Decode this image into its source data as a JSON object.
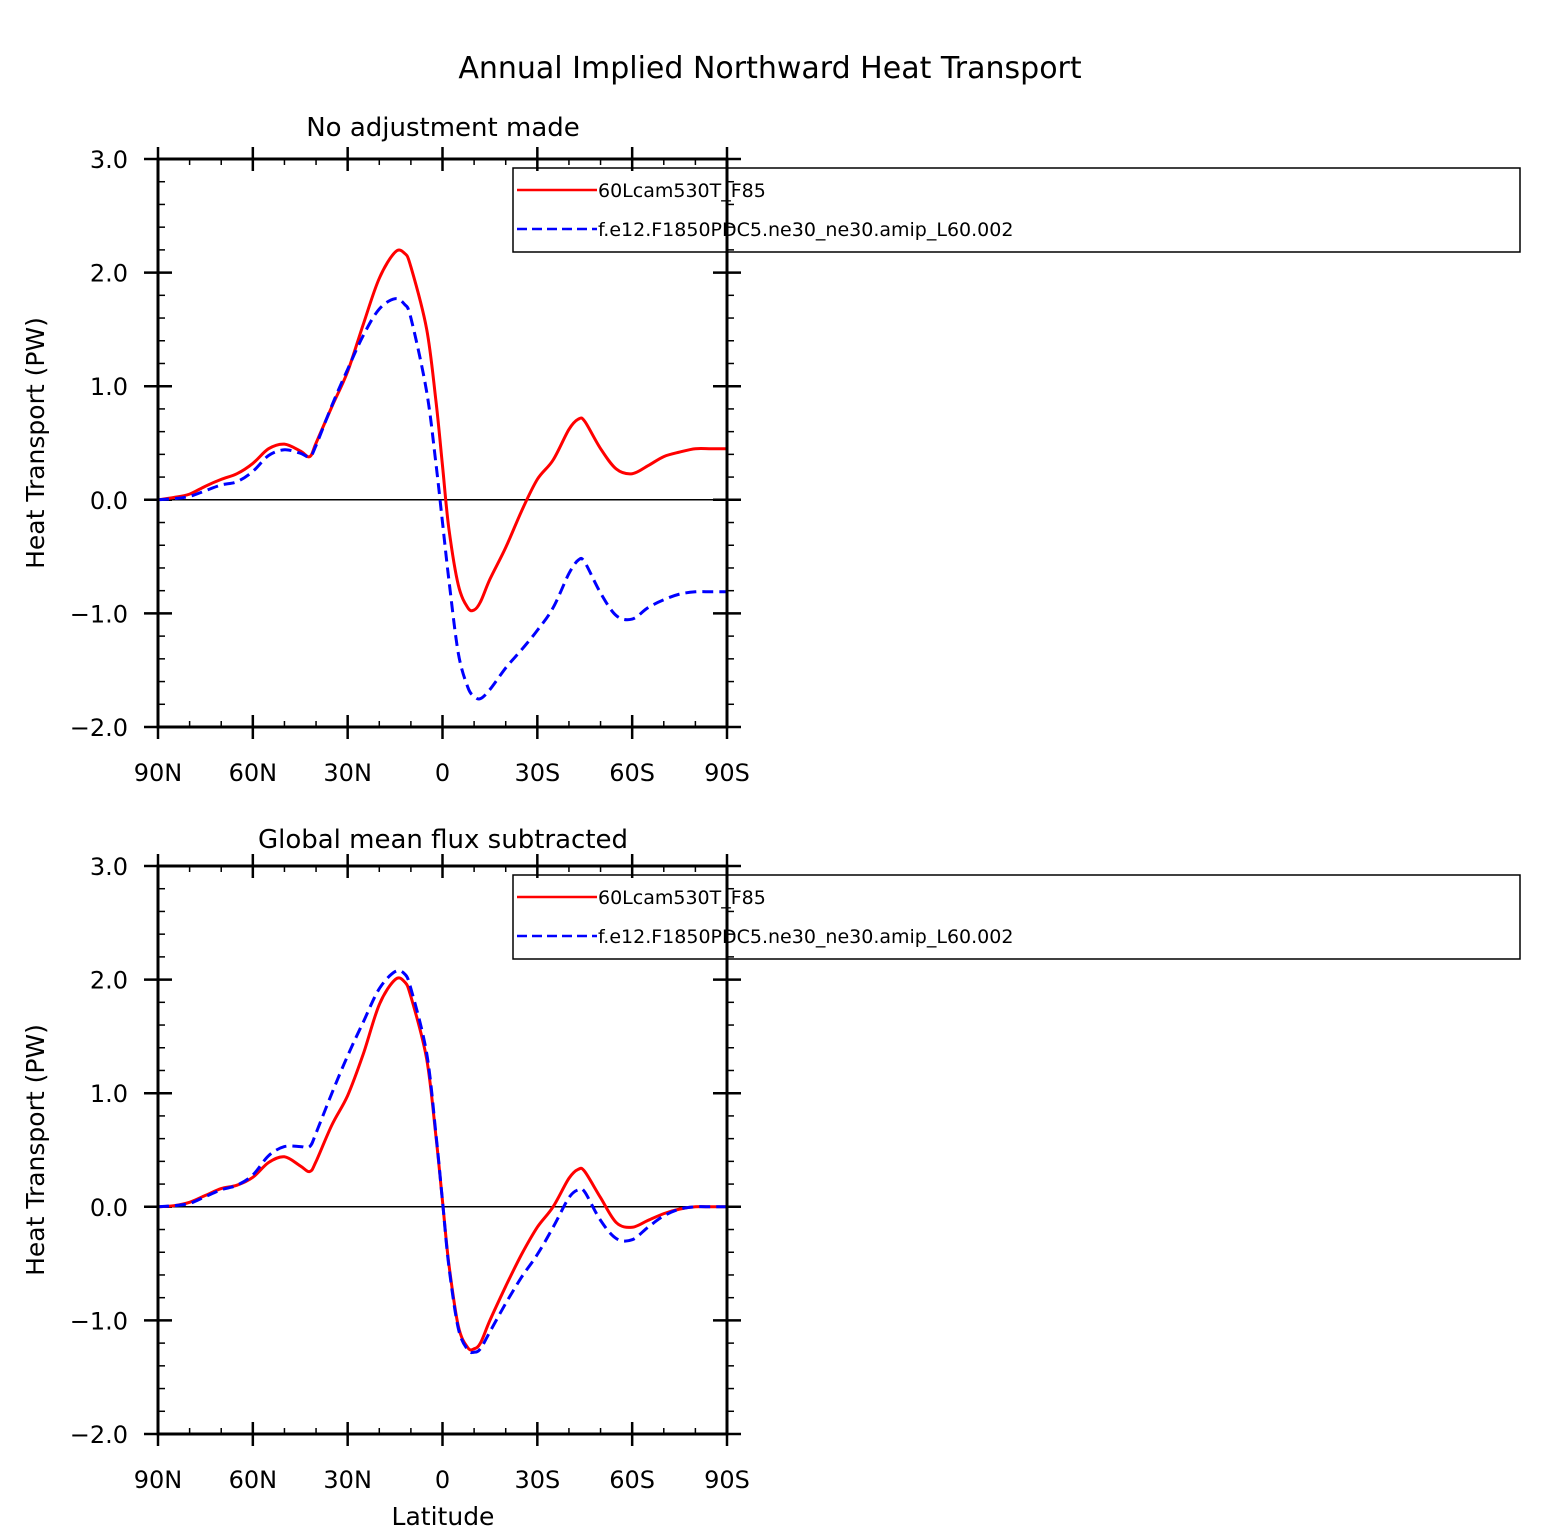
{
  "figure": {
    "title": "Annual Implied Northward Heat Transport",
    "xlabel": "Latitude"
  },
  "chart_data": [
    {
      "type": "line",
      "title": "No adjustment made",
      "ylabel": "Heat Transport (PW)",
      "xlabel": "",
      "xlim": [
        90,
        -90
      ],
      "ylim": [
        -2,
        3
      ],
      "x_ticks": [
        90,
        60,
        30,
        0,
        -30,
        -60,
        -90
      ],
      "x_tick_labels": [
        "90N",
        "60N",
        "30N",
        "0",
        "30S",
        "60S",
        "90S"
      ],
      "y_ticks": [
        -2,
        -1,
        0,
        1,
        2,
        3
      ],
      "y_tick_labels": [
        "−2.0",
        "−1.0",
        "0.0",
        "1.0",
        "2.0",
        "3.0"
      ],
      "zero_line": true,
      "legend_position": "top-right",
      "series": [
        {
          "name": "60Lcam530T_F85",
          "color": "#ff0000",
          "style": "solid",
          "x": [
            90,
            85,
            80,
            75,
            70,
            65,
            60,
            55,
            50,
            45,
            42,
            40,
            35,
            30,
            25,
            20,
            15,
            12,
            10,
            5,
            2,
            0,
            -2,
            -5,
            -8,
            -10,
            -12,
            -15,
            -20,
            -25,
            -30,
            -35,
            -40,
            -43,
            -45,
            -50,
            -55,
            -60,
            -65,
            -70,
            -75,
            -80,
            -85,
            -90
          ],
          "y": [
            0.0,
            0.02,
            0.05,
            0.12,
            0.18,
            0.23,
            0.32,
            0.45,
            0.49,
            0.43,
            0.38,
            0.5,
            0.82,
            1.13,
            1.55,
            1.95,
            2.18,
            2.17,
            2.05,
            1.5,
            0.85,
            0.3,
            -0.25,
            -0.75,
            -0.95,
            -0.97,
            -0.9,
            -0.7,
            -0.42,
            -0.1,
            0.18,
            0.35,
            0.62,
            0.71,
            0.69,
            0.45,
            0.27,
            0.23,
            0.3,
            0.38,
            0.42,
            0.45,
            0.45,
            0.45
          ]
        },
        {
          "name": "f.e12.F1850PDC5.ne30_ne30.amip_L60.002",
          "color": "#0000ff",
          "style": "dashed",
          "x": [
            90,
            85,
            80,
            75,
            70,
            65,
            60,
            55,
            50,
            45,
            42,
            40,
            35,
            30,
            25,
            20,
            15,
            12,
            10,
            5,
            2,
            0,
            -2,
            -5,
            -8,
            -10,
            -12,
            -15,
            -20,
            -25,
            -30,
            -35,
            -40,
            -43,
            -45,
            -50,
            -55,
            -60,
            -65,
            -70,
            -75,
            -80,
            -85,
            -90
          ],
          "y": [
            0.0,
            0.01,
            0.03,
            0.08,
            0.13,
            0.16,
            0.25,
            0.39,
            0.44,
            0.41,
            0.38,
            0.48,
            0.83,
            1.15,
            1.45,
            1.68,
            1.77,
            1.72,
            1.6,
            0.95,
            0.3,
            -0.2,
            -0.7,
            -1.35,
            -1.65,
            -1.73,
            -1.75,
            -1.67,
            -1.48,
            -1.32,
            -1.15,
            -0.95,
            -0.65,
            -0.53,
            -0.55,
            -0.82,
            -1.02,
            -1.05,
            -0.95,
            -0.88,
            -0.83,
            -0.81,
            -0.81,
            -0.81
          ]
        }
      ]
    },
    {
      "type": "line",
      "title": "Global mean flux subtracted",
      "ylabel": "Heat Transport (PW)",
      "xlabel": "Latitude",
      "xlim": [
        90,
        -90
      ],
      "ylim": [
        -2,
        3
      ],
      "x_ticks": [
        90,
        60,
        30,
        0,
        -30,
        -60,
        -90
      ],
      "x_tick_labels": [
        "90N",
        "60N",
        "30N",
        "0",
        "30S",
        "60S",
        "90S"
      ],
      "y_ticks": [
        -2,
        -1,
        0,
        1,
        2,
        3
      ],
      "y_tick_labels": [
        "−2.0",
        "−1.0",
        "0.0",
        "1.0",
        "2.0",
        "3.0"
      ],
      "zero_line": true,
      "legend_position": "top-right",
      "series": [
        {
          "name": "60Lcam530T_F85",
          "color": "#ff0000",
          "style": "solid",
          "x": [
            90,
            85,
            80,
            75,
            70,
            65,
            60,
            55,
            50,
            45,
            42,
            40,
            35,
            30,
            25,
            20,
            15,
            12,
            10,
            5,
            2,
            0,
            -2,
            -5,
            -8,
            -10,
            -12,
            -15,
            -20,
            -25,
            -30,
            -35,
            -40,
            -43,
            -45,
            -50,
            -55,
            -60,
            -65,
            -70,
            -75,
            -80,
            -85,
            -90
          ],
          "y": [
            0.0,
            0.01,
            0.04,
            0.1,
            0.16,
            0.19,
            0.26,
            0.39,
            0.44,
            0.36,
            0.31,
            0.4,
            0.72,
            0.98,
            1.35,
            1.78,
            2.0,
            1.98,
            1.85,
            1.3,
            0.6,
            0.05,
            -0.5,
            -1.05,
            -1.24,
            -1.25,
            -1.2,
            -1.0,
            -0.7,
            -0.42,
            -0.18,
            0.0,
            0.25,
            0.33,
            0.31,
            0.08,
            -0.14,
            -0.18,
            -0.12,
            -0.06,
            -0.02,
            0.0,
            0.0,
            0.0
          ]
        },
        {
          "name": "f.e12.F1850PDC5.ne30_ne30.amip_L60.002",
          "color": "#0000ff",
          "style": "dashed",
          "x": [
            90,
            85,
            80,
            75,
            70,
            65,
            60,
            55,
            50,
            45,
            42,
            40,
            35,
            30,
            25,
            20,
            15,
            12,
            10,
            5,
            2,
            0,
            -2,
            -5,
            -8,
            -10,
            -12,
            -15,
            -20,
            -25,
            -30,
            -35,
            -40,
            -43,
            -45,
            -50,
            -55,
            -60,
            -65,
            -70,
            -75,
            -80,
            -85,
            -90
          ],
          "y": [
            0.0,
            0.01,
            0.03,
            0.09,
            0.15,
            0.19,
            0.28,
            0.45,
            0.53,
            0.53,
            0.53,
            0.65,
            1.0,
            1.33,
            1.63,
            1.92,
            2.07,
            2.05,
            1.92,
            1.35,
            0.62,
            0.05,
            -0.52,
            -1.07,
            -1.26,
            -1.28,
            -1.25,
            -1.1,
            -0.85,
            -0.62,
            -0.42,
            -0.18,
            0.08,
            0.15,
            0.13,
            -0.12,
            -0.28,
            -0.29,
            -0.18,
            -0.08,
            -0.02,
            0.0,
            0.0,
            0.0
          ]
        }
      ]
    }
  ]
}
